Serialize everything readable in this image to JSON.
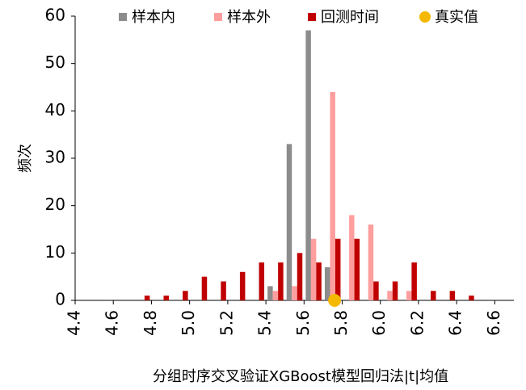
{
  "chart_data": {
    "type": "bar",
    "ylabel": "频次",
    "xlabel": "分组时序交叉验证XGBoost模型回归法|t|均值",
    "x": [
      4.75,
      4.85,
      4.95,
      5.05,
      5.15,
      5.25,
      5.35,
      5.45,
      5.55,
      5.65,
      5.75,
      5.85,
      5.95,
      6.05,
      6.15,
      6.25,
      6.35,
      6.45
    ],
    "series": [
      {
        "name": "样本内",
        "color": "#8c8c8c",
        "values": [
          0,
          0,
          0,
          0,
          0,
          0,
          0,
          3,
          33,
          57,
          7,
          0,
          0,
          0,
          0,
          0,
          0,
          0
        ]
      },
      {
        "name": "样本外",
        "color": "#ff9e9e",
        "values": [
          0,
          0,
          0,
          0,
          0,
          0,
          0,
          2,
          3,
          13,
          44,
          18,
          16,
          2,
          2,
          0,
          0,
          0
        ]
      },
      {
        "name": "回测时间",
        "color": "#c00000",
        "values": [
          1,
          1,
          2,
          5,
          4,
          6,
          8,
          8,
          10,
          8,
          13,
          13,
          4,
          4,
          8,
          2,
          2,
          1
        ]
      }
    ],
    "true_value": {
      "name": "真实值",
      "x": 5.76,
      "y": 0,
      "color": "#f5b800"
    },
    "xlim": [
      4.4,
      6.7
    ],
    "xticks": [
      4.4,
      4.6,
      4.8,
      5.0,
      5.2,
      5.4,
      5.6,
      5.8,
      6.0,
      6.2,
      6.4,
      6.6
    ],
    "ylim": [
      0,
      60
    ],
    "yticks": [
      0,
      10,
      20,
      30,
      40,
      50,
      60
    ]
  }
}
